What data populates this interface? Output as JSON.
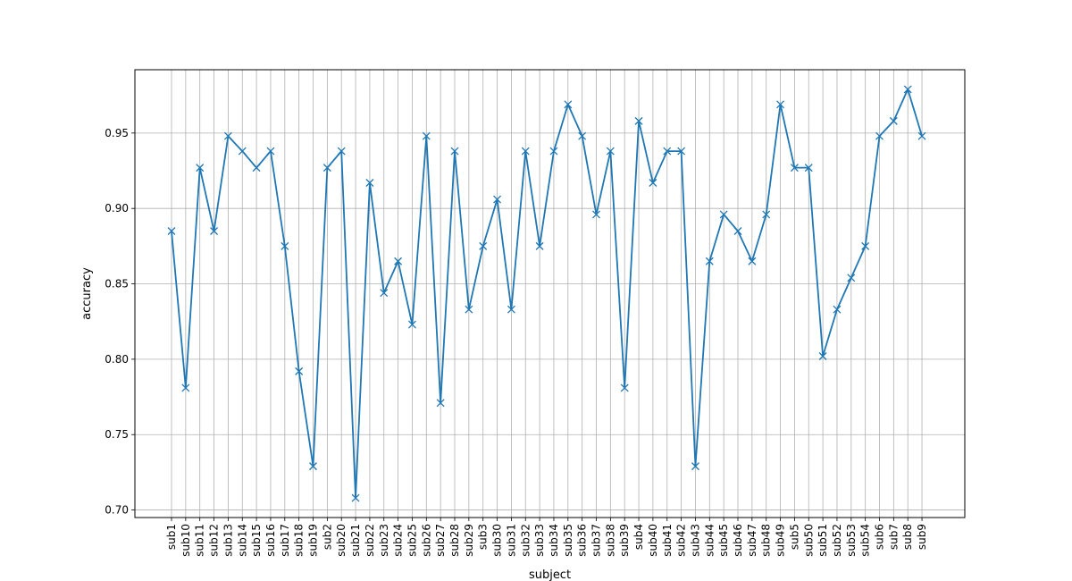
{
  "chart_data": {
    "type": "line",
    "title": "",
    "xlabel": "subject",
    "ylabel": "accuracy",
    "grid": true,
    "marker": "x",
    "colors": {
      "line": "#1f77b4",
      "grid": "#b0b0b0",
      "axis": "#000000"
    },
    "ylim": [
      0.695,
      0.992
    ],
    "yticks": [
      0.7,
      0.75,
      0.8,
      0.85,
      0.9,
      0.95
    ],
    "ytick_labels": [
      "0.70",
      "0.75",
      "0.80",
      "0.85",
      "0.90",
      "0.95"
    ],
    "categories": [
      "sub1",
      "sub10",
      "sub11",
      "sub12",
      "sub13",
      "sub14",
      "sub15",
      "sub16",
      "sub17",
      "sub18",
      "sub19",
      "sub2",
      "sub20",
      "sub21",
      "sub22",
      "sub23",
      "sub24",
      "sub25",
      "sub26",
      "sub27",
      "sub28",
      "sub29",
      "sub3",
      "sub30",
      "sub31",
      "sub32",
      "sub33",
      "sub34",
      "sub35",
      "sub36",
      "sub37",
      "sub38",
      "sub39",
      "sub4",
      "sub40",
      "sub41",
      "sub42",
      "sub43",
      "sub44",
      "sub45",
      "sub46",
      "sub47",
      "sub48",
      "sub49",
      "sub5",
      "sub50",
      "sub51",
      "sub52",
      "sub53",
      "sub54",
      "sub6",
      "sub7",
      "sub8",
      "sub9"
    ],
    "series": [
      {
        "values": [
          0.885,
          0.781,
          0.927,
          0.885,
          0.948,
          0.938,
          0.927,
          0.938,
          0.875,
          0.792,
          0.729,
          0.927,
          0.938,
          0.708,
          0.917,
          0.844,
          0.865,
          0.823,
          0.948,
          0.771,
          0.938,
          0.833,
          0.875,
          0.906,
          0.833,
          0.938,
          0.875,
          0.938,
          0.969,
          0.948,
          0.896,
          0.938,
          0.781,
          0.958,
          0.917,
          0.938,
          0.938,
          0.729,
          0.865,
          0.896,
          0.885,
          0.865,
          0.896,
          0.969,
          0.927,
          0.927,
          0.802,
          0.833,
          0.854,
          0.875,
          0.948,
          0.958,
          0.979,
          0.948
        ]
      }
    ]
  }
}
